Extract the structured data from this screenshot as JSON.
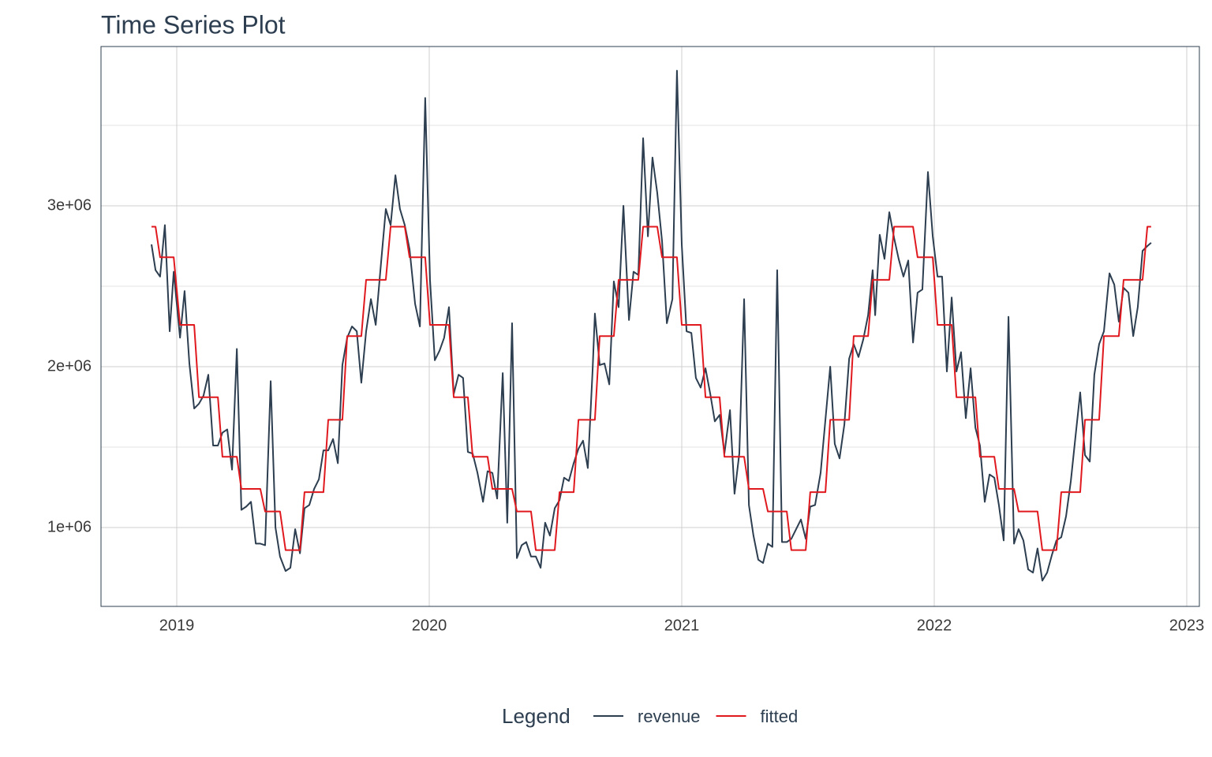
{
  "chart_data": {
    "type": "line",
    "title": "Time Series Plot",
    "legend_title": "Legend",
    "legend_position": "bottom",
    "grid": true,
    "xlim": [
      2018.7,
      2023.05
    ],
    "xticks": [
      2019,
      2020,
      2021,
      2022,
      2023
    ],
    "ylim": [
      510000,
      3990000
    ],
    "yticks": [
      {
        "value": 1000000,
        "label": "1e+06"
      },
      {
        "value": 2000000,
        "label": "2e+06"
      },
      {
        "value": 3000000,
        "label": "3e+06"
      }
    ],
    "minor_yticks": [
      1500000,
      2500000,
      3500000
    ],
    "x": [
      2018.9,
      2018.916,
      2018.934,
      2018.953,
      2018.972,
      2018.988,
      2019.013,
      2019.031,
      2019.05,
      2019.069,
      2019.088,
      2019.106,
      2019.125,
      2019.144,
      2019.163,
      2019.181,
      2019.2,
      2019.219,
      2019.238,
      2019.256,
      2019.275,
      2019.294,
      2019.313,
      2019.331,
      2019.35,
      2019.372,
      2019.391,
      2019.409,
      2019.431,
      2019.45,
      2019.469,
      2019.488,
      2019.506,
      2019.525,
      2019.544,
      2019.563,
      2019.581,
      2019.6,
      2019.619,
      2019.638,
      2019.656,
      2019.675,
      2019.694,
      2019.713,
      2019.731,
      2019.75,
      2019.769,
      2019.788,
      2019.806,
      2019.828,
      2019.847,
      2019.866,
      2019.884,
      2019.903,
      2019.922,
      2019.944,
      2019.963,
      2019.984,
      2020.003,
      2020.022,
      2020.041,
      2020.059,
      2020.078,
      2020.097,
      2020.116,
      2020.134,
      2020.153,
      2020.172,
      2020.191,
      2020.213,
      2020.231,
      2020.25,
      2020.269,
      2020.291,
      2020.309,
      2020.328,
      2020.347,
      2020.366,
      2020.384,
      2020.403,
      2020.422,
      2020.441,
      2020.459,
      2020.478,
      2020.497,
      2020.516,
      2020.534,
      2020.553,
      2020.572,
      2020.591,
      2020.609,
      2020.628,
      2020.647,
      2020.656,
      2020.675,
      2020.694,
      2020.713,
      2020.731,
      2020.75,
      2020.769,
      2020.791,
      2020.809,
      2020.828,
      2020.847,
      2020.866,
      2020.884,
      2020.903,
      2020.922,
      2020.941,
      2020.963,
      2020.981,
      2021.0,
      2021.019,
      2021.038,
      2021.056,
      2021.075,
      2021.094,
      2021.113,
      2021.131,
      2021.15,
      2021.169,
      2021.191,
      2021.209,
      2021.228,
      2021.247,
      2021.266,
      2021.284,
      2021.303,
      2021.322,
      2021.341,
      2021.359,
      2021.378,
      2021.397,
      2021.416,
      2021.434,
      2021.453,
      2021.472,
      2021.491,
      2021.509,
      2021.528,
      2021.55,
      2021.569,
      2021.588,
      2021.606,
      2021.625,
      2021.644,
      2021.663,
      2021.681,
      2021.7,
      2021.719,
      2021.738,
      2021.756,
      2021.766,
      2021.784,
      2021.803,
      2021.822,
      2021.841,
      2021.859,
      2021.878,
      2021.897,
      2021.916,
      2021.934,
      2021.953,
      2021.975,
      2021.994,
      2022.013,
      2022.031,
      2022.05,
      2022.069,
      2022.088,
      2022.106,
      2022.125,
      2022.144,
      2022.163,
      2022.181,
      2022.2,
      2022.219,
      2022.238,
      2022.256,
      2022.275,
      2022.294,
      2022.316,
      2022.334,
      2022.353,
      2022.372,
      2022.391,
      2022.409,
      2022.428,
      2022.447,
      2022.466,
      2022.484,
      2022.503,
      2022.522,
      2022.541,
      2022.559,
      2022.578,
      2022.597,
      2022.616,
      2022.634,
      2022.653,
      2022.672,
      2022.694,
      2022.713,
      2022.731,
      2022.75,
      2022.769,
      2022.788,
      2022.806,
      2022.825,
      2022.844,
      2022.859
    ],
    "series": [
      {
        "name": "revenue",
        "color": "#2c3e50",
        "values": [
          2760000,
          2600000,
          2560000,
          2880000,
          2220000,
          2590000,
          2180000,
          2470000,
          2020000,
          1740000,
          1770000,
          1820000,
          1950000,
          1510000,
          1510000,
          1590000,
          1610000,
          1360000,
          2110000,
          1110000,
          1130000,
          1160000,
          900000,
          900000,
          890000,
          1910000,
          1000000,
          820000,
          730000,
          750000,
          990000,
          840000,
          1120000,
          1140000,
          1240000,
          1300000,
          1480000,
          1480000,
          1550000,
          1400000,
          2010000,
          2180000,
          2250000,
          2220000,
          1900000,
          2220000,
          2420000,
          2260000,
          2590000,
          2980000,
          2880000,
          3190000,
          2980000,
          2880000,
          2730000,
          2390000,
          2250000,
          3670000,
          2540000,
          2040000,
          2100000,
          2180000,
          2370000,
          1830000,
          1950000,
          1930000,
          1470000,
          1460000,
          1340000,
          1160000,
          1350000,
          1340000,
          1180000,
          1960000,
          1030000,
          2270000,
          810000,
          890000,
          910000,
          820000,
          820000,
          750000,
          1030000,
          950000,
          1120000,
          1170000,
          1310000,
          1290000,
          1400000,
          1490000,
          1540000,
          1370000,
          1980000,
          2330000,
          2010000,
          2020000,
          1890000,
          2530000,
          2370000,
          3000000,
          2290000,
          2590000,
          2570000,
          3420000,
          2810000,
          3300000,
          3080000,
          2780000,
          2270000,
          2420000,
          3840000,
          2760000,
          2220000,
          2210000,
          1930000,
          1870000,
          1990000,
          1830000,
          1660000,
          1700000,
          1460000,
          1730000,
          1210000,
          1460000,
          2420000,
          1140000,
          950000,
          800000,
          780000,
          900000,
          880000,
          2600000,
          910000,
          910000,
          930000,
          990000,
          1050000,
          930000,
          1130000,
          1140000,
          1340000,
          1670000,
          2000000,
          1520000,
          1430000,
          1640000,
          2050000,
          2140000,
          2060000,
          2170000,
          2320000,
          2600000,
          2320000,
          2820000,
          2670000,
          2960000,
          2800000,
          2670000,
          2560000,
          2660000,
          2150000,
          2460000,
          2480000,
          3210000,
          2810000,
          2560000,
          2560000,
          1970000,
          2430000,
          1970000,
          2090000,
          1680000,
          1990000,
          1620000,
          1510000,
          1160000,
          1330000,
          1310000,
          1140000,
          920000,
          2310000,
          900000,
          990000,
          920000,
          740000,
          720000,
          870000,
          670000,
          720000,
          830000,
          920000,
          940000,
          1070000,
          1290000,
          1560000,
          1840000,
          1450000,
          1410000,
          1950000,
          2140000,
          2220000,
          2580000,
          2510000,
          2280000,
          2490000,
          2460000,
          2190000,
          2370000,
          2720000,
          2750000,
          2770000
        ]
      },
      {
        "name": "fitted",
        "color": "#e0191f",
        "values": [
          2870000,
          2870000,
          2680000,
          2680000,
          2680000,
          2680000,
          2260000,
          2260000,
          2260000,
          2260000,
          1810000,
          1810000,
          1810000,
          1810000,
          1810000,
          1440000,
          1440000,
          1440000,
          1440000,
          1240000,
          1240000,
          1240000,
          1240000,
          1240000,
          1100000,
          1100000,
          1100000,
          1100000,
          860000,
          860000,
          860000,
          860000,
          1220000,
          1220000,
          1220000,
          1220000,
          1220000,
          1670000,
          1670000,
          1670000,
          1670000,
          2190000,
          2190000,
          2190000,
          2190000,
          2540000,
          2540000,
          2540000,
          2540000,
          2540000,
          2870000,
          2870000,
          2870000,
          2870000,
          2680000,
          2680000,
          2680000,
          2680000,
          2260000,
          2260000,
          2260000,
          2260000,
          2260000,
          1810000,
          1810000,
          1810000,
          1810000,
          1440000,
          1440000,
          1440000,
          1440000,
          1240000,
          1240000,
          1240000,
          1240000,
          1240000,
          1100000,
          1100000,
          1100000,
          1100000,
          860000,
          860000,
          860000,
          860000,
          860000,
          1220000,
          1220000,
          1220000,
          1220000,
          1670000,
          1670000,
          1670000,
          1670000,
          1670000,
          2190000,
          2190000,
          2190000,
          2190000,
          2540000,
          2540000,
          2540000,
          2540000,
          2540000,
          2870000,
          2870000,
          2870000,
          2870000,
          2680000,
          2680000,
          2680000,
          2680000,
          2260000,
          2260000,
          2260000,
          2260000,
          2260000,
          1810000,
          1810000,
          1810000,
          1810000,
          1440000,
          1440000,
          1440000,
          1440000,
          1440000,
          1240000,
          1240000,
          1240000,
          1240000,
          1100000,
          1100000,
          1100000,
          1100000,
          1100000,
          860000,
          860000,
          860000,
          860000,
          1220000,
          1220000,
          1220000,
          1220000,
          1670000,
          1670000,
          1670000,
          1670000,
          1670000,
          2190000,
          2190000,
          2190000,
          2190000,
          2540000,
          2540000,
          2540000,
          2540000,
          2540000,
          2870000,
          2870000,
          2870000,
          2870000,
          2870000,
          2680000,
          2680000,
          2680000,
          2680000,
          2260000,
          2260000,
          2260000,
          2260000,
          1810000,
          1810000,
          1810000,
          1810000,
          1810000,
          1440000,
          1440000,
          1440000,
          1440000,
          1240000,
          1240000,
          1240000,
          1240000,
          1100000,
          1100000,
          1100000,
          1100000,
          1100000,
          860000,
          860000,
          860000,
          860000,
          1220000,
          1220000,
          1220000,
          1220000,
          1220000,
          1670000,
          1670000,
          1670000,
          1670000,
          2190000,
          2190000,
          2190000,
          2190000,
          2540000,
          2540000,
          2540000,
          2540000,
          2540000,
          2870000,
          2870000
        ]
      }
    ]
  }
}
